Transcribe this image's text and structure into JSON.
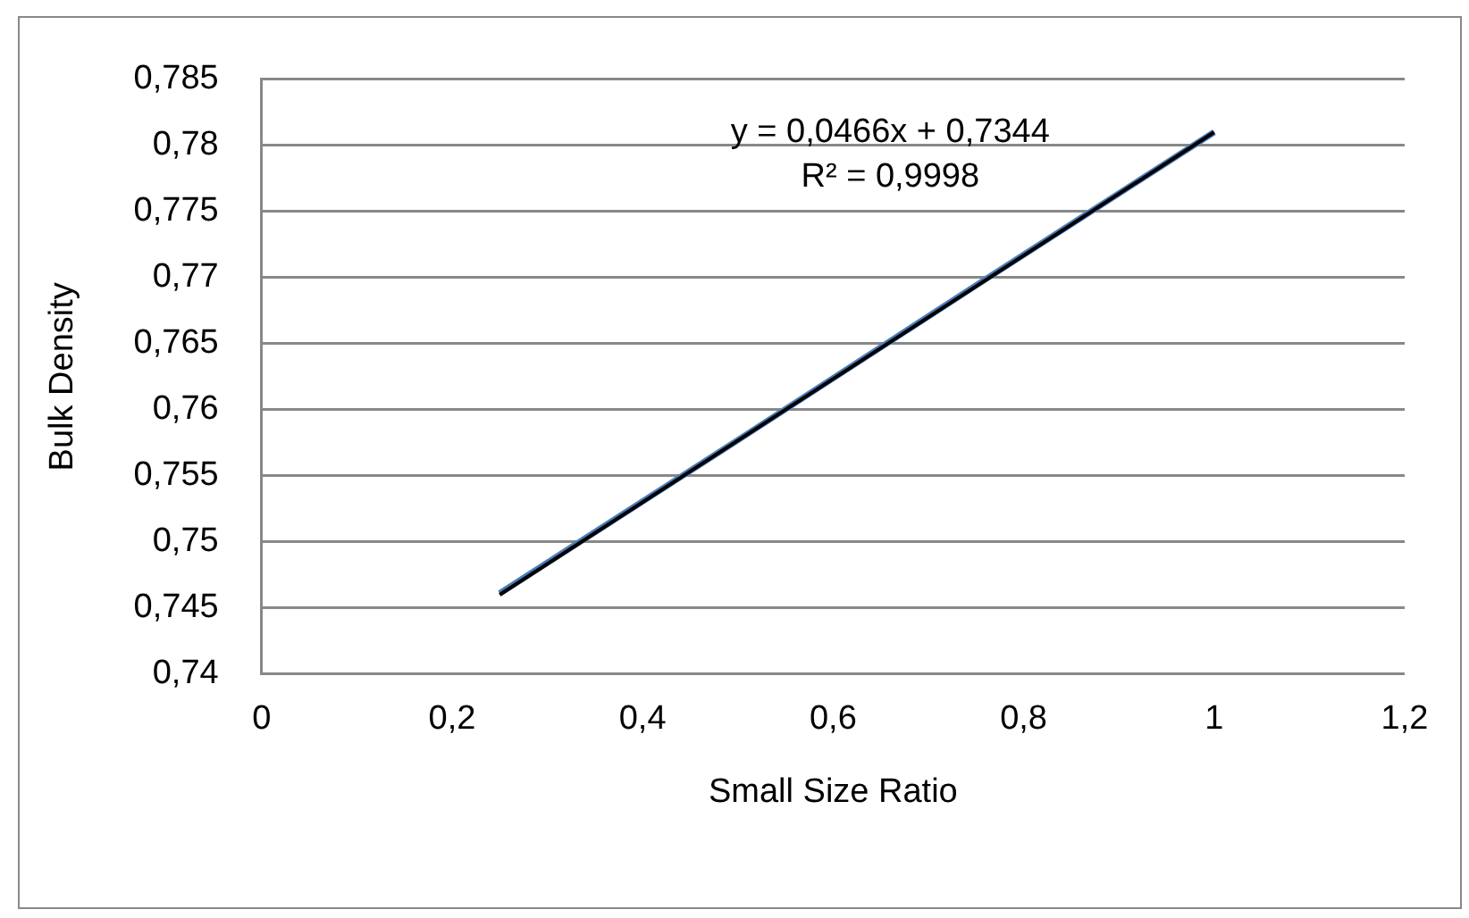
{
  "chart_data": {
    "type": "line",
    "xlabel": "Small Size Ratio",
    "ylabel": "Bulk Density",
    "annotations": [
      "y = 0,0466x + 0,7344",
      "R² = 0,9998"
    ],
    "series": [
      {
        "color": "#4a7ebb",
        "x": [
          0.25,
          0.5,
          0.75,
          1
        ],
        "values": [
          0.7461,
          0.7577,
          0.7694,
          0.781
        ]
      },
      {
        "type": "line",
        "color": "#000000",
        "x": [
          0.25,
          1
        ],
        "values": [
          0.746,
          0.781
        ]
      }
    ],
    "xlim": [
      0,
      1.2
    ],
    "xticks": [
      0,
      {
        "value": 0.2,
        "label": "0,2"
      },
      {
        "value": 0.4,
        "label": "0,4"
      },
      {
        "value": 0.6,
        "label": "0,6"
      },
      {
        "value": 0.8,
        "label": "0,8"
      },
      1,
      {
        "value": 1.2,
        "label": "1,2"
      }
    ],
    "ylim": [
      0.74,
      0.785
    ],
    "yticks": [
      {
        "value": 0.74,
        "label": "0,74"
      },
      {
        "value": 0.745,
        "label": "0,745"
      },
      {
        "value": 0.75,
        "label": "0,75"
      },
      {
        "value": 0.755,
        "label": "0,755"
      },
      {
        "value": 0.76,
        "label": "0,76"
      },
      {
        "value": 0.765,
        "label": "0,765"
      },
      {
        "value": 0.77,
        "label": "0,77"
      },
      {
        "value": 0.775,
        "label": "0,775"
      },
      {
        "value": 0.78,
        "label": "0,78"
      },
      {
        "value": 0.785,
        "label": "0,785"
      }
    ],
    "grid": "y",
    "legend": false,
    "marker": "none",
    "line_style": "solid"
  }
}
